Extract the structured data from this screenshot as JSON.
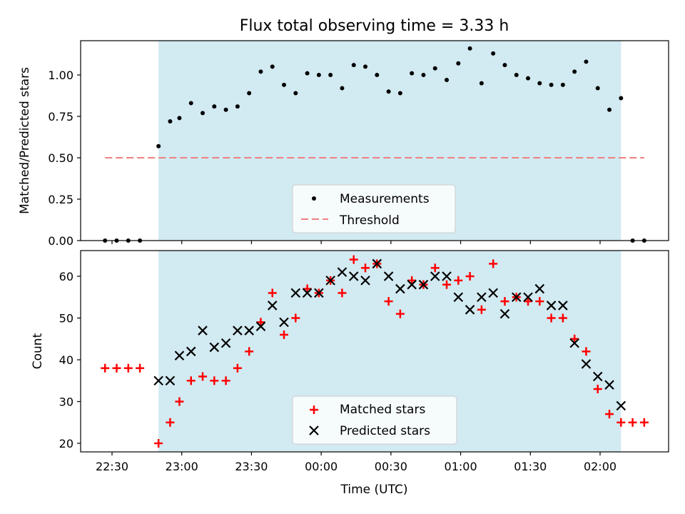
{
  "chart_data": [
    {
      "type": "scatter",
      "title": "Flux total observing time = 3.33 h",
      "xlabel": "",
      "ylabel": "Matched/Predicted stars",
      "ylim": [
        0,
        1.2
      ],
      "yticks": [
        "0.00",
        "0.25",
        "0.50",
        "0.75",
        "1.00"
      ],
      "grid": false,
      "legend_position": "bottom-center",
      "shaded_interval": [
        "22:50",
        "02:09"
      ],
      "shade_color": "#add8e6",
      "series": [
        {
          "name": "Measurements",
          "marker": "dot",
          "color": "#000000",
          "x": [
            "22:27",
            "22:32",
            "22:37",
            "22:42",
            "22:50",
            "22:55",
            "22:59",
            "23:04",
            "23:09",
            "23:14",
            "23:19",
            "23:24",
            "23:29",
            "23:34",
            "23:39",
            "23:44",
            "23:49",
            "23:54",
            "23:59",
            "00:04",
            "00:09",
            "00:14",
            "00:19",
            "00:24",
            "00:29",
            "00:34",
            "00:39",
            "00:44",
            "00:49",
            "00:54",
            "00:59",
            "01:04",
            "01:09",
            "01:14",
            "01:19",
            "01:24",
            "01:29",
            "01:34",
            "01:39",
            "01:44",
            "01:49",
            "01:54",
            "01:59",
            "02:04",
            "02:09",
            "02:14",
            "02:19"
          ],
          "y": [
            0.0,
            0.0,
            0.0,
            0.0,
            0.57,
            0.72,
            0.74,
            0.83,
            0.77,
            0.81,
            0.79,
            0.81,
            0.89,
            1.02,
            1.05,
            0.94,
            0.89,
            1.01,
            1.0,
            1.0,
            0.92,
            1.06,
            1.05,
            1.0,
            0.9,
            0.89,
            1.01,
            1.0,
            1.04,
            0.97,
            1.07,
            1.16,
            0.95,
            1.13,
            1.06,
            1.0,
            0.98,
            0.95,
            0.94,
            0.94,
            1.02,
            1.08,
            0.92,
            0.79,
            0.86,
            0.0,
            0.0
          ]
        },
        {
          "name": "Threshold",
          "style": "dashed",
          "color": "#f08080",
          "x": [
            "22:27",
            "02:19"
          ],
          "y": [
            0.5,
            0.5
          ]
        }
      ]
    },
    {
      "type": "scatter",
      "title": "",
      "xlabel": "Time (UTC)",
      "ylabel": "Count",
      "ylim": [
        18,
        66
      ],
      "yticks": [
        "20",
        "30",
        "40",
        "50",
        "60"
      ],
      "xticks": [
        "22:30",
        "23:00",
        "23:30",
        "00:00",
        "00:30",
        "01:00",
        "01:30",
        "02:00"
      ],
      "grid": false,
      "legend_position": "bottom-center",
      "shaded_interval": [
        "22:50",
        "02:09"
      ],
      "shade_color": "#add8e6",
      "series": [
        {
          "name": "Matched stars",
          "marker": "plus",
          "color": "#ff0000",
          "x": [
            "22:27",
            "22:32",
            "22:37",
            "22:42",
            "22:50",
            "22:55",
            "22:59",
            "23:04",
            "23:09",
            "23:14",
            "23:19",
            "23:24",
            "23:29",
            "23:34",
            "23:39",
            "23:44",
            "23:49",
            "23:54",
            "23:59",
            "00:04",
            "00:09",
            "00:14",
            "00:19",
            "00:24",
            "00:29",
            "00:34",
            "00:39",
            "00:44",
            "00:49",
            "00:54",
            "00:59",
            "01:04",
            "01:09",
            "01:14",
            "01:19",
            "01:24",
            "01:29",
            "01:34",
            "01:39",
            "01:44",
            "01:49",
            "01:54",
            "01:59",
            "02:04",
            "02:09",
            "02:14",
            "02:19"
          ],
          "y": [
            38,
            38,
            38,
            38,
            20,
            25,
            30,
            35,
            36,
            35,
            35,
            38,
            42,
            49,
            56,
            46,
            50,
            57,
            56,
            59,
            56,
            64,
            62,
            63,
            54,
            51,
            59,
            58,
            62,
            58,
            59,
            60,
            52,
            63,
            54,
            55,
            54,
            54,
            50,
            50,
            45,
            42,
            33,
            27,
            25,
            25,
            25
          ]
        },
        {
          "name": "Predicted stars",
          "marker": "x",
          "color": "#000000",
          "x": [
            "22:50",
            "22:55",
            "22:59",
            "23:04",
            "23:09",
            "23:14",
            "23:19",
            "23:24",
            "23:29",
            "23:34",
            "23:39",
            "23:44",
            "23:49",
            "23:54",
            "23:59",
            "00:04",
            "00:09",
            "00:14",
            "00:19",
            "00:24",
            "00:29",
            "00:34",
            "00:39",
            "00:44",
            "00:49",
            "00:54",
            "00:59",
            "01:04",
            "01:09",
            "01:14",
            "01:19",
            "01:24",
            "01:29",
            "01:34",
            "01:39",
            "01:44",
            "01:49",
            "01:54",
            "01:59",
            "02:04",
            "02:09"
          ],
          "y": [
            35,
            35,
            41,
            42,
            47,
            43,
            44,
            47,
            47,
            48,
            53,
            49,
            56,
            56,
            56,
            59,
            61,
            60,
            59,
            63,
            60,
            57,
            58,
            58,
            60,
            60,
            55,
            52,
            55,
            56,
            51,
            55,
            55,
            57,
            53,
            53,
            44,
            39,
            36,
            34,
            29
          ]
        }
      ]
    }
  ]
}
